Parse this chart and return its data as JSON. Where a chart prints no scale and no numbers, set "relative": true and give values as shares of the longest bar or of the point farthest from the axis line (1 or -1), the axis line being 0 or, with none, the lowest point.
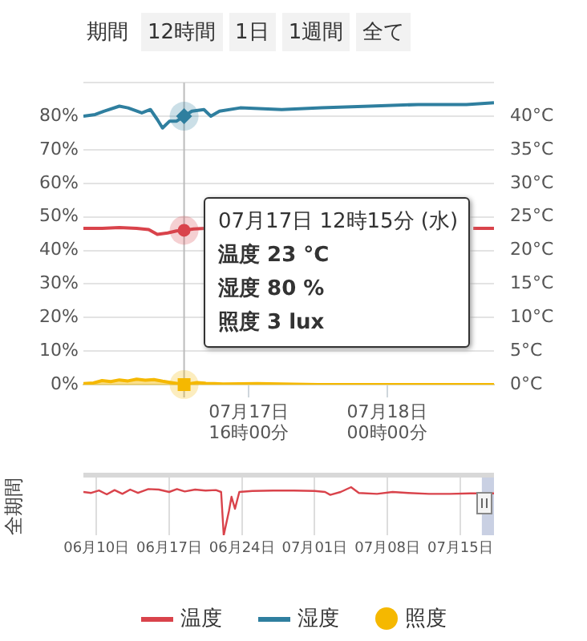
{
  "chart_data": [
    {
      "type": "line",
      "annotations": [
        "期間",
        "12時間",
        "1日",
        "1週間",
        "全て",
        "07月17日 12時15分 (水)",
        "温度 23 °C",
        "湿度 80 %",
        "照度 3 lux"
      ],
      "xlim": [
        "--07-17T06:25",
        "--07-18T06:12"
      ],
      "xticks": [
        {
          "value": "--07-17T16:00",
          "label": "07月17日\n16時00分"
        },
        {
          "value": "--07-18T00:00",
          "label": "07月18日\n00時00分"
        }
      ],
      "ylim": [
        0,
        90
      ],
      "yticks": [
        {
          "value": 0,
          "label": "0%"
        },
        {
          "value": 10,
          "label": "10%"
        },
        {
          "value": 20,
          "label": "20%"
        },
        {
          "value": 30,
          "label": "30%"
        },
        {
          "value": 40,
          "label": "40%"
        },
        {
          "value": 50,
          "label": "50%"
        },
        {
          "value": 60,
          "label": "60%"
        },
        {
          "value": 70,
          "label": "70%"
        },
        {
          "value": 80,
          "label": "80%"
        },
        {
          "value": 90,
          "label": null
        }
      ],
      "y2lim": [
        0,
        45
      ],
      "y2ticks": [
        {
          "value": 0,
          "label": "0°C"
        },
        {
          "value": 5,
          "label": "5°C"
        },
        {
          "value": 10,
          "label": "10°C"
        },
        {
          "value": 15,
          "label": "15°C"
        },
        {
          "value": 20,
          "label": "20°C"
        },
        {
          "value": 25,
          "label": "25°C"
        },
        {
          "value": 30,
          "label": "30°C"
        },
        {
          "value": 35,
          "label": "35°C"
        },
        {
          "value": 40,
          "label": "40°C"
        }
      ],
      "grid": "y",
      "legend": "bottom",
      "marker": "none",
      "ref_lines": [
        {
          "axis": "x",
          "value": "--07-17T12:15",
          "color": "#bbbbbb"
        }
      ],
      "series": [
        {
          "name": "温度",
          "color": "#d9434b",
          "axis": "y2",
          "x": [
            "--07-17T06:25",
            "--07-17T07:30",
            "--07-17T08:30",
            "--07-17T09:30",
            "--07-17T10:12",
            "--07-17T10:42",
            "--07-17T11:18",
            "--07-17T11:48",
            "--07-17T12:15",
            "--07-17T12:48",
            "--07-17T13:30",
            "--07-17T13:54",
            "--07-18T05:00",
            "--07-18T06:12"
          ],
          "values": [
            23.3,
            23.3,
            23.4,
            23.3,
            23.1,
            22.4,
            22.6,
            22.9,
            23,
            23.2,
            23.3,
            null,
            23.3,
            23.3
          ]
        },
        {
          "name": "湿度",
          "color": "#2f7f9f",
          "axis": "y",
          "x": [
            "--07-17T06:25",
            "--07-17T07:06",
            "--07-17T07:36",
            "--07-17T08:30",
            "--07-17T09:00",
            "--07-17T09:48",
            "--07-17T10:18",
            "--07-17T10:42",
            "--07-17T11:00",
            "--07-17T11:24",
            "--07-17T11:48",
            "--07-17T12:15",
            "--07-17T12:42",
            "--07-17T13:24",
            "--07-17T13:48",
            "--07-17T14:18",
            "--07-17T15:30",
            "--07-17T17:54",
            "--07-17T20:12",
            "--07-17T23:00",
            "--07-18T01:48",
            "--07-18T04:36",
            "--07-18T06:12"
          ],
          "values": [
            80,
            80.5,
            81.5,
            83,
            82.5,
            81,
            82,
            79,
            76.5,
            78.5,
            78.5,
            80,
            81.5,
            82,
            80,
            81.5,
            82.5,
            82,
            82.5,
            83,
            83.5,
            83.5,
            84
          ]
        },
        {
          "name": "照度",
          "type": "area",
          "color": "#f5b800",
          "axis": "y",
          "x": [
            "--07-17T06:25",
            "--07-17T07:00",
            "--07-17T07:30",
            "--07-17T08:00",
            "--07-17T08:30",
            "--07-17T09:00",
            "--07-17T09:30",
            "--07-17T10:00",
            "--07-17T10:30",
            "--07-17T11:00",
            "--07-17T11:30",
            "--07-17T12:15",
            "--07-17T13:00",
            "--07-17T13:30",
            "--07-17T14:30",
            "--07-17T16:30",
            "--07-17T20:00",
            "--07-18T01:00",
            "--07-18T06:12"
          ],
          "values": [
            0.3,
            0.5,
            1.2,
            0.9,
            1.4,
            1.1,
            1.6,
            1.3,
            1.5,
            1.0,
            0.6,
            0,
            0.6,
            0.4,
            0.2,
            0.3,
            0,
            0,
            0
          ]
        }
      ]
    },
    {
      "type": "line",
      "ylabel": "全期間",
      "relative": true,
      "grid": "x",
      "tick_labels": "x",
      "color": "#d9434b",
      "xlim": [
        "--06-08T18:00",
        "--07-18T06:00"
      ],
      "xticks": [
        {
          "value": "--06-10",
          "label": "06月10日"
        },
        {
          "value": "--06-17",
          "label": "06月17日"
        },
        {
          "value": "--06-24",
          "label": "06月24日"
        },
        {
          "value": "--07-01",
          "label": "07月01日"
        },
        {
          "value": "--07-08",
          "label": "07月08日"
        },
        {
          "value": "--07-15",
          "label": "07月15日"
        }
      ],
      "bands": [
        {
          "axis": "x",
          "from": "--07-17T02:00",
          "to": "--07-18T06:00",
          "color": "#c9d0e3"
        }
      ],
      "x": [
        "--06-08T18:00",
        "--06-09T12:00",
        "--06-10T06:00",
        "--06-11T00:00",
        "--06-11T18:00",
        "--06-12T12:00",
        "--06-13T06:00",
        "--06-14T00:00",
        "--06-15T00:00",
        "--06-16T00:00",
        "--06-17T00:00",
        "--06-17T18:00",
        "--06-18T12:00",
        "--06-19T12:00",
        "--06-20T12:00",
        "--06-21T12:00",
        "--06-22T00:00",
        "--06-22T06:00",
        "--06-22T18:00",
        "--06-23T00:00",
        "--06-23T08:00",
        "--06-23T18:00",
        "--06-25T00:00",
        "--06-27T00:00",
        "--06-29T00:00",
        "--07-01T00:00",
        "--07-02T00:00",
        "--07-02T12:00",
        "--07-03T12:00",
        "--07-04T12:00",
        "--07-05T06:00",
        "--07-07T00:00",
        "--07-08T12:00",
        "--07-10T00:00",
        "--07-12T00:00",
        "--07-14T00:00",
        "--07-16T00:00",
        "--07-18T06:00"
      ],
      "values": [
        0.9,
        0.88,
        0.93,
        0.85,
        0.94,
        0.86,
        0.95,
        0.88,
        0.96,
        0.95,
        0.9,
        0.96,
        0.91,
        0.95,
        0.93,
        0.94,
        0.9,
        0,
        0.5,
        0.8,
        0.55,
        0.9,
        0.92,
        0.93,
        0.93,
        0.92,
        0.9,
        0.84,
        0.9,
        1,
        0.88,
        0.86,
        0.9,
        0.88,
        0.86,
        0.86,
        0.87,
        0.87
      ]
    }
  ]
}
